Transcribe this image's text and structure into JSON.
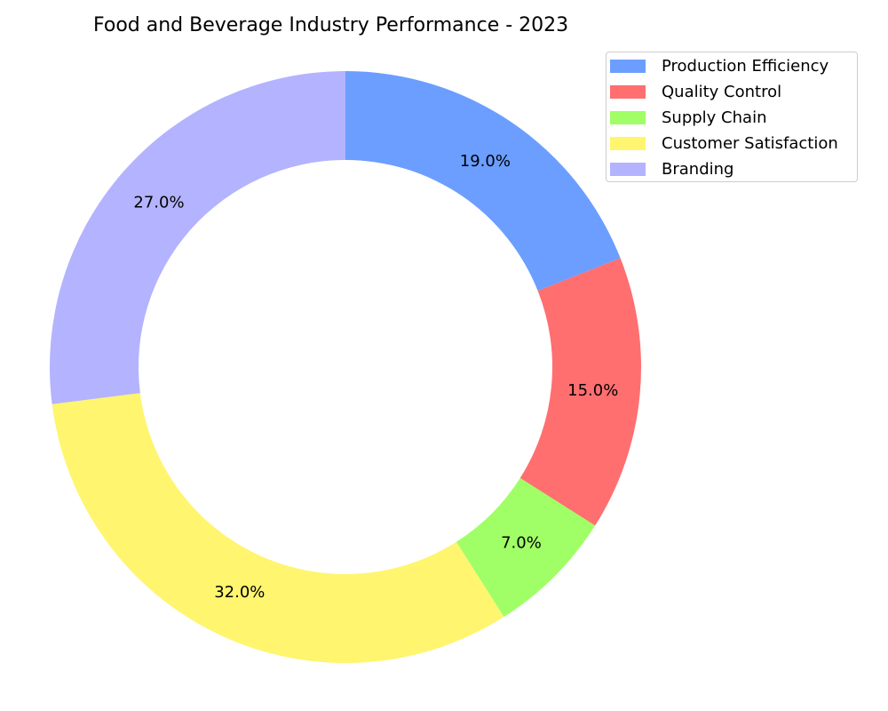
{
  "chart_data": {
    "type": "pie",
    "title": "Food and Beverage Industry Performance - 2023",
    "categories": [
      "Production Efficiency",
      "Quality Control",
      "Supply Chain",
      "Customer Satisfaction",
      "Branding"
    ],
    "values": [
      19.0,
      15.0,
      7.0,
      32.0,
      27.0
    ],
    "value_labels": [
      "19.0%",
      "15.0%",
      "7.0%",
      "32.0%",
      "27.0%"
    ],
    "colors": [
      "#6b9eff",
      "#ff6f6f",
      "#a0ff66",
      "#fff56f",
      "#b3b3ff"
    ],
    "donut": true,
    "start_angle_deg": 90,
    "direction": "clockwise",
    "legend": {
      "placement": "top-right"
    }
  }
}
